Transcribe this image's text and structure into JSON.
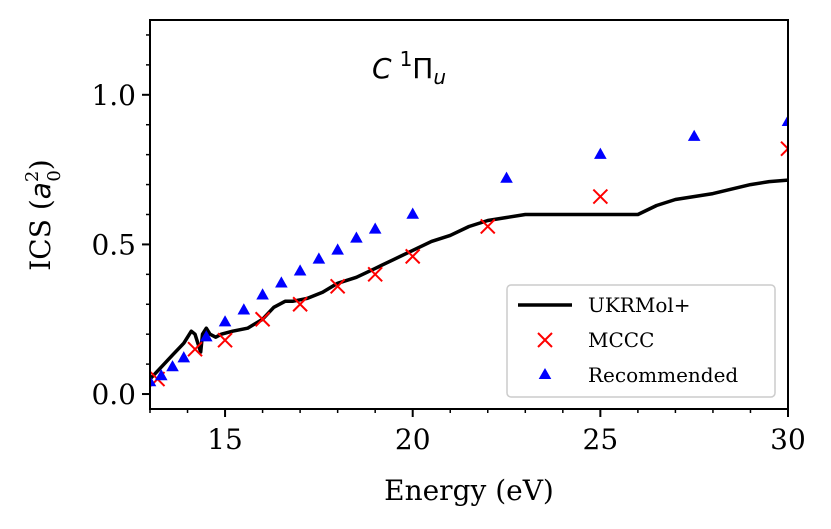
{
  "chart_data": {
    "type": "line",
    "title": "",
    "annotation": {
      "base": "C",
      "sup": "1",
      "sym": "Π",
      "sub": "u"
    },
    "xlabel": "Energy (eV)",
    "ylabel_prefix": "ICS (",
    "ylabel_base": "a",
    "ylabel_sup": "2",
    "ylabel_sub": "0",
    "ylabel_suffix": ")",
    "xlim": [
      13,
      30
    ],
    "ylim": [
      -0.05,
      1.25
    ],
    "xticks": [
      15,
      20,
      25,
      30
    ],
    "xtick_labels": [
      "15",
      "20",
      "25",
      "30"
    ],
    "yticks": [
      0.0,
      0.5,
      1.0
    ],
    "ytick_labels": [
      "0.0",
      "0.5",
      "1.0"
    ],
    "legend_position": "lower-right",
    "series": [
      {
        "name": "UKRMol+",
        "kind": "line",
        "color": "#000000",
        "x": [
          13.0,
          13.3,
          13.6,
          13.9,
          14.1,
          14.2,
          14.3,
          14.35,
          14.4,
          14.5,
          14.6,
          14.75,
          14.9,
          15.2,
          15.6,
          16.0,
          16.3,
          16.6,
          16.8,
          17.2,
          17.6,
          18.0,
          18.5,
          19.0,
          19.5,
          20.0,
          20.5,
          21.0,
          21.5,
          22.0,
          22.5,
          23.0,
          24.0,
          24.5,
          25.0,
          25.5,
          26.0,
          26.5,
          27.0,
          28.0,
          29.0,
          29.5,
          30.0
        ],
        "y": [
          0.05,
          0.09,
          0.13,
          0.17,
          0.21,
          0.2,
          0.16,
          0.14,
          0.2,
          0.22,
          0.2,
          0.19,
          0.2,
          0.21,
          0.22,
          0.25,
          0.29,
          0.31,
          0.31,
          0.32,
          0.34,
          0.37,
          0.39,
          0.42,
          0.45,
          0.48,
          0.51,
          0.53,
          0.56,
          0.58,
          0.59,
          0.6,
          0.6,
          0.6,
          0.6,
          0.6,
          0.6,
          0.63,
          0.65,
          0.67,
          0.7,
          0.71,
          0.715
        ]
      },
      {
        "name": "MCCC",
        "kind": "scatter",
        "marker": "x",
        "color": "#ff0000",
        "x": [
          13.2,
          14.2,
          15.0,
          16.0,
          17.0,
          18.0,
          19.0,
          20.0,
          22.0,
          25.0,
          30.0
        ],
        "y": [
          0.05,
          0.15,
          0.18,
          0.25,
          0.3,
          0.36,
          0.4,
          0.46,
          0.56,
          0.66,
          0.82
        ]
      },
      {
        "name": "Recommended",
        "kind": "scatter",
        "marker": "triangle",
        "color": "#0000ff",
        "x": [
          13.0,
          13.3,
          13.6,
          13.9,
          14.5,
          15.0,
          15.5,
          16.0,
          16.5,
          17.0,
          17.5,
          18.0,
          18.5,
          19.0,
          20.0,
          22.5,
          25.0,
          27.5,
          30.0
        ],
        "y": [
          0.04,
          0.06,
          0.09,
          0.12,
          0.19,
          0.24,
          0.28,
          0.33,
          0.37,
          0.41,
          0.45,
          0.48,
          0.52,
          0.55,
          0.6,
          0.72,
          0.8,
          0.86,
          0.91
        ]
      }
    ]
  }
}
